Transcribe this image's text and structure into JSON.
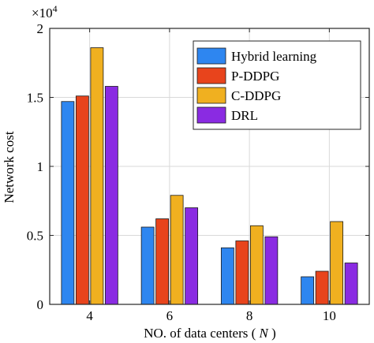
{
  "chart_data": {
    "type": "bar",
    "title": "",
    "xlabel": "NO. of data centers (",
    "xlabel_var": "N",
    "xlabel_close": ")",
    "ylabel": "Network cost",
    "y_multiplier_base": "×10",
    "y_multiplier_exp": "4",
    "categories": [
      "4",
      "6",
      "8",
      "10"
    ],
    "ylim": [
      0,
      2
    ],
    "yticks": [
      "0",
      "0.5",
      "1",
      "1.5",
      "2"
    ],
    "grid": true,
    "legend_position": "top-right",
    "series": [
      {
        "name": "Hybrid learning",
        "color": "#2e86f0",
        "values": [
          1.47,
          0.56,
          0.41,
          0.2
        ]
      },
      {
        "name": "P-DDPG",
        "color": "#e8441c",
        "values": [
          1.51,
          0.62,
          0.46,
          0.24
        ]
      },
      {
        "name": "C-DDPG",
        "color": "#f0b020",
        "values": [
          1.86,
          0.79,
          0.57,
          0.6
        ]
      },
      {
        "name": "DRL",
        "color": "#8a2be2",
        "values": [
          1.58,
          0.7,
          0.49,
          0.3
        ]
      }
    ]
  }
}
